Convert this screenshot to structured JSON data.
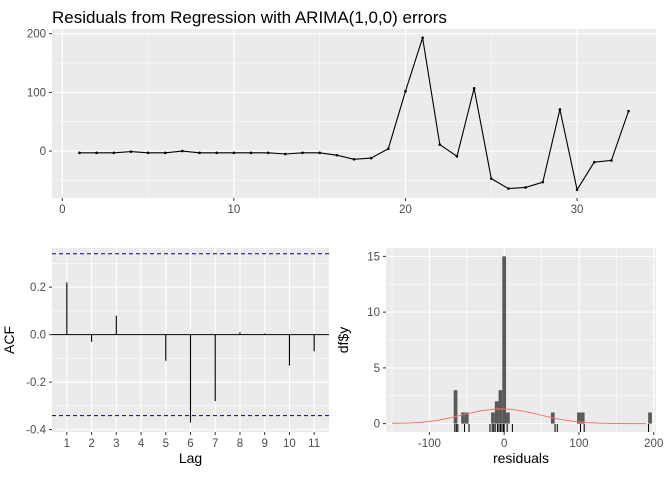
{
  "title": "Residuals from Regression with ARIMA(1,0,0) errors",
  "colors": {
    "panel_bg": "#EBEBEB",
    "grid": "#FFFFFF",
    "line": "#000000",
    "ci_line": "#00008B",
    "bar": "#595959",
    "density": "#F8766D",
    "tick_text": "#4D4D4D"
  },
  "chart_data": [
    {
      "type": "line",
      "x": [
        1,
        2,
        3,
        4,
        5,
        6,
        7,
        8,
        9,
        10,
        11,
        12,
        13,
        14,
        15,
        16,
        17,
        18,
        19,
        20,
        21,
        22,
        23,
        24,
        25,
        26,
        27,
        28,
        29,
        30,
        31,
        32,
        33
      ],
      "y": [
        -3,
        -3,
        -3,
        -1,
        -3,
        -3,
        0,
        -3,
        -3,
        -3,
        -3,
        -3,
        -5,
        -3,
        -3,
        -7,
        -14,
        -12,
        4,
        102,
        193,
        11,
        -9,
        107,
        -47,
        -64,
        -62,
        -53,
        71,
        -66,
        -19,
        -16,
        68
      ],
      "xlim": [
        -0.6,
        34.6
      ],
      "ylim": [
        -80,
        208
      ],
      "xticks": [
        0,
        10,
        20,
        30
      ],
      "yticks": [
        0,
        100,
        200
      ],
      "xlabel": "",
      "ylabel": "",
      "grid": true,
      "legend": "none"
    },
    {
      "type": "bar",
      "subtype": "acf",
      "x": [
        1,
        2,
        3,
        4,
        5,
        6,
        7,
        8,
        9,
        10,
        11
      ],
      "values": [
        0.22,
        -0.03,
        0.08,
        0.0,
        -0.11,
        -0.37,
        -0.28,
        0.01,
        0.005,
        -0.13,
        -0.07
      ],
      "ci": [
        0.341,
        -0.341
      ],
      "xlim": [
        0.4,
        11.6
      ],
      "ylim": [
        -0.41,
        0.365
      ],
      "xticks": [
        1,
        2,
        3,
        4,
        5,
        6,
        7,
        8,
        9,
        10,
        11
      ],
      "yticks": [
        -0.4,
        -0.2,
        0.0,
        0.2
      ],
      "ytick_labels": [
        "-0.4",
        "-0.2",
        "0.0",
        "0.2"
      ],
      "xlabel": "Lag",
      "ylabel": "ACF",
      "grid": true,
      "legend": "none"
    },
    {
      "type": "bar",
      "subtype": "histogram",
      "bin_centers": [
        -65,
        -55,
        -50,
        -15,
        -10,
        -5,
        0,
        5,
        65,
        100,
        105,
        195
      ],
      "counts": [
        3,
        1,
        1,
        1,
        2,
        3,
        15,
        1,
        1,
        1,
        1,
        1
      ],
      "bin_width": 5,
      "rug": [
        -66,
        -64,
        -62,
        -53,
        -47,
        -19,
        -16,
        -14,
        -12,
        -9,
        -7,
        -5,
        -3,
        -1,
        0,
        4,
        11,
        68,
        71,
        102,
        107,
        193
      ],
      "density_curve": {
        "x": [
          -150,
          -130,
          -110,
          -90,
          -70,
          -50,
          -30,
          -10,
          10,
          30,
          50,
          70,
          90,
          110,
          130,
          150,
          170,
          190
        ],
        "y": [
          0.02,
          0.05,
          0.12,
          0.28,
          0.55,
          0.88,
          1.17,
          1.32,
          1.28,
          1.06,
          0.75,
          0.45,
          0.23,
          0.1,
          0.04,
          0.015,
          0.005,
          0.002
        ]
      },
      "xlim": [
        -158,
        203
      ],
      "ylim": [
        -0.75,
        15.75
      ],
      "xticks": [
        -100,
        0,
        100,
        200
      ],
      "yticks": [
        0,
        5,
        10,
        15
      ],
      "xlabel": "residuals",
      "ylabel": "df$y",
      "grid": true,
      "legend": "none"
    }
  ]
}
